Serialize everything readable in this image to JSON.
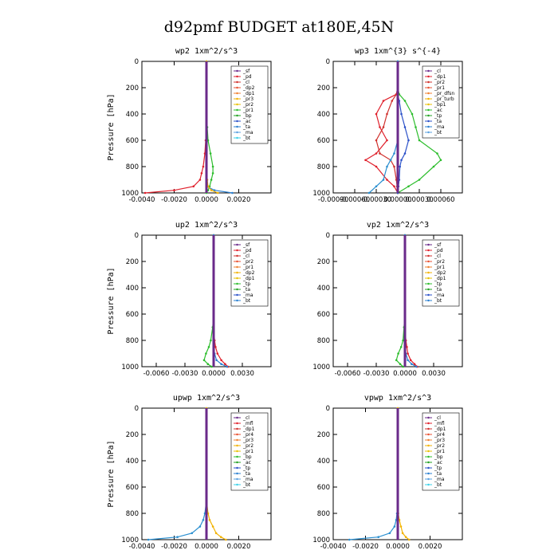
{
  "title": "d92pmf  BUDGET at180E,45N",
  "chart_data": [
    {
      "type": "line",
      "title": "wp2   1xm^2/s^3",
      "ylabel": "Pressure [hPa]",
      "xlim": [
        -0.004,
        0.004
      ],
      "ylim": [
        1000,
        0
      ],
      "xticks": [
        "-0.0040",
        "-0.0020",
        "0.0000",
        "0.0020"
      ],
      "xtick_values": [
        -0.004,
        -0.002,
        0.0,
        0.002
      ],
      "yticks": [
        "0",
        "200",
        "400",
        "600",
        "800",
        "1000"
      ],
      "ytick_values": [
        0,
        200,
        400,
        600,
        800,
        1000
      ],
      "legend": [
        "_sf",
        "_pd",
        "_cl",
        "_dp2",
        "_dp1",
        "_pr3",
        "_pr2",
        "_pr1",
        "_bp",
        "_ac",
        "_ta",
        "_ma",
        "_bt"
      ],
      "pressure": [
        0,
        100,
        200,
        300,
        400,
        500,
        600,
        700,
        800,
        850,
        900,
        950,
        980,
        1000
      ],
      "series": [
        {
          "name": "_pd",
          "color": "#e0202c",
          "values": [
            0,
            0,
            0,
            0,
            0,
            -1e-05,
            -5e-05,
            -0.0001,
            -0.0002,
            -0.0003,
            -0.0004,
            -0.0008,
            -0.002,
            -0.0038
          ]
        },
        {
          "name": "_bp",
          "color": "#2cbd2c",
          "values": [
            0,
            0,
            0,
            0,
            0,
            5e-05,
            0.0001,
            0.00025,
            0.0004,
            0.0004,
            0.0003,
            0.0002,
            0.0001,
            0
          ]
        },
        {
          "name": "_ta",
          "color": "#2a7fd0",
          "values": [
            0,
            0,
            0,
            0,
            0,
            0,
            0,
            0,
            0,
            0,
            0,
            0,
            0.0005,
            0.0016
          ]
        },
        {
          "name": "_pr1",
          "color": "#f2b200",
          "values": [
            0,
            0,
            0,
            0,
            0,
            0,
            0,
            0,
            0,
            0,
            5e-05,
            0.0001,
            0.0003,
            0.0007
          ]
        },
        {
          "name": "_bt",
          "color": "#6a2a8a",
          "values": [
            0,
            0,
            0,
            0,
            0,
            0,
            0,
            0,
            0,
            0,
            0,
            0,
            0,
            0
          ]
        }
      ]
    },
    {
      "type": "line",
      "title": "wp3   1xm^{3} s^{-4}",
      "ylabel": "",
      "xlim": [
        -0.0009,
        0.0009
      ],
      "ylim": [
        1000,
        0
      ],
      "xticks": [
        "-0.00090",
        "-0.00060",
        "-0.00030",
        "0.00000",
        "0.00030",
        "0.00060"
      ],
      "xtick_values": [
        -0.0009,
        -0.0006,
        -0.0003,
        0.0,
        0.0003,
        0.0006
      ],
      "yticks": [
        "0",
        "200",
        "400",
        "600",
        "800",
        "1000"
      ],
      "ytick_values": [
        0,
        200,
        400,
        600,
        800,
        1000
      ],
      "legend": [
        "_cl",
        "_dp1",
        "_pr2",
        "_pr1",
        "_pr_dfsn",
        "_pr_turb",
        "_bp1",
        "_ac",
        "_tp",
        "_ta",
        "_ma",
        "_bt"
      ],
      "pressure": [
        0,
        100,
        200,
        250,
        300,
        400,
        500,
        600,
        700,
        750,
        800,
        900,
        950,
        1000
      ],
      "series": [
        {
          "name": "_dp1",
          "color": "#e0202c",
          "values": [
            0,
            0,
            0,
            -2e-05,
            -0.0002,
            -0.0003,
            -0.00025,
            -0.00015,
            -0.0003,
            -0.00045,
            -0.0003,
            -0.00015,
            -5e-05,
            0
          ]
        },
        {
          "name": "_pr2",
          "color": "#d0302c",
          "values": [
            0,
            0,
            0,
            -2e-05,
            -8e-05,
            -0.00015,
            -0.0002,
            -0.0003,
            -0.00025,
            -0.0001,
            -5e-05,
            -2e-05,
            -1e-05,
            0
          ]
        },
        {
          "name": "_bp1",
          "color": "#2cbd2c",
          "values": [
            0,
            0,
            0,
            2e-05,
            0.0001,
            0.0002,
            0.00025,
            0.0003,
            0.00055,
            0.0006,
            0.0005,
            0.0003,
            0.00015,
            0
          ]
        },
        {
          "name": "_tp",
          "color": "#2a50c8",
          "values": [
            0,
            0,
            0,
            0,
            2e-05,
            5e-05,
            0.0001,
            0.00015,
            0.0001,
            5e-05,
            3e-05,
            2e-05,
            1e-05,
            0
          ]
        },
        {
          "name": "_ta",
          "color": "#2a8fd0",
          "values": [
            0,
            0,
            0,
            0,
            0,
            0,
            0,
            0,
            -5e-05,
            -0.0001,
            -0.00015,
            -0.0002,
            -0.0003,
            -0.0004
          ]
        },
        {
          "name": "_bt",
          "color": "#6a2a8a",
          "values": [
            0,
            0,
            0,
            0,
            0,
            0,
            0,
            0,
            0,
            0,
            0,
            0,
            0,
            0
          ]
        }
      ]
    },
    {
      "type": "line",
      "title": "up2   1xm^2/s^3",
      "ylabel": "Pressure [hPa]",
      "xlim": [
        -0.0075,
        0.006
      ],
      "ylim": [
        1000,
        0
      ],
      "xticks": [
        "-0.0060",
        "-0.0030",
        "0.0000",
        "0.0030"
      ],
      "xtick_values": [
        -0.006,
        -0.003,
        0.0,
        0.003
      ],
      "yticks": [
        "0",
        "200",
        "400",
        "600",
        "800",
        "1000"
      ],
      "ytick_values": [
        0,
        200,
        400,
        600,
        800,
        1000
      ],
      "legend": [
        "_sf",
        "_pd",
        "_cl",
        "_pr2",
        "_pr1",
        "_dp2",
        "_dp1",
        "_tp",
        "_ta",
        "_ma",
        "_bt"
      ],
      "pressure": [
        0,
        200,
        400,
        600,
        700,
        800,
        850,
        900,
        950,
        980,
        1000
      ],
      "series": [
        {
          "name": "_pd",
          "color": "#e0202c",
          "values": [
            0,
            0,
            0,
            0,
            0,
            0.0001,
            0.0002,
            0.0004,
            0.0008,
            0.0012,
            0.0015
          ]
        },
        {
          "name": "_dp1",
          "color": "#2cbd2c",
          "values": [
            0,
            0,
            0,
            0,
            -0.0001,
            -0.0003,
            -0.0005,
            -0.0008,
            -0.001,
            -0.0006,
            -0.0002
          ]
        },
        {
          "name": "_ta",
          "color": "#2a7fd0",
          "values": [
            0,
            0,
            0,
            0,
            0,
            0,
            0,
            0.0001,
            0.0003,
            0.0008,
            0.0014
          ]
        },
        {
          "name": "_bt",
          "color": "#6a2a8a",
          "values": [
            0,
            0,
            0,
            0,
            0,
            0,
            0,
            0,
            0,
            0,
            0
          ]
        }
      ]
    },
    {
      "type": "line",
      "title": "vp2   1xm^2/s^3",
      "ylabel": "",
      "xlim": [
        -0.0075,
        0.006
      ],
      "ylim": [
        1000,
        0
      ],
      "xticks": [
        "-0.0060",
        "-0.0030",
        "0.0000",
        "0.0030"
      ],
      "xtick_values": [
        -0.006,
        -0.003,
        0.0,
        0.003
      ],
      "yticks": [
        "0",
        "200",
        "400",
        "600",
        "800",
        "1000"
      ],
      "ytick_values": [
        0,
        200,
        400,
        600,
        800,
        1000
      ],
      "legend": [
        "_sf",
        "_pd",
        "_cl",
        "_pr2",
        "_pr1",
        "_dp2",
        "_dp1",
        "_tp",
        "_ta",
        "_ma",
        "_bt"
      ],
      "pressure": [
        0,
        200,
        400,
        600,
        700,
        800,
        850,
        900,
        950,
        980,
        1000
      ],
      "series": [
        {
          "name": "_pd",
          "color": "#e0202c",
          "values": [
            0,
            0,
            0,
            0,
            0,
            0.0001,
            0.0002,
            0.0003,
            0.0006,
            0.001,
            0.0013
          ]
        },
        {
          "name": "_dp1",
          "color": "#2cbd2c",
          "values": [
            0,
            0,
            0,
            0,
            -0.0001,
            -0.0002,
            -0.0004,
            -0.0007,
            -0.0009,
            -0.0005,
            -0.0002
          ]
        },
        {
          "name": "_ta",
          "color": "#2a7fd0",
          "values": [
            0,
            0,
            0,
            0,
            0,
            0,
            0,
            0.0001,
            0.0003,
            0.0007,
            0.0012
          ]
        },
        {
          "name": "_bt",
          "color": "#6a2a8a",
          "values": [
            0,
            0,
            0,
            0,
            0,
            0,
            0,
            0,
            0,
            0,
            0
          ]
        }
      ]
    },
    {
      "type": "line",
      "title": "upwp   1xm^2/s^3",
      "ylabel": "Pressure [hPa]",
      "xlim": [
        -0.004,
        0.004
      ],
      "ylim": [
        1000,
        0
      ],
      "xticks": [
        "-0.0040",
        "-0.0020",
        "0.0000",
        "0.0020"
      ],
      "xtick_values": [
        -0.004,
        -0.002,
        0.0,
        0.002
      ],
      "yticks": [
        "0",
        "200",
        "400",
        "600",
        "800",
        "1000"
      ],
      "ytick_values": [
        0,
        200,
        400,
        600,
        800,
        1000
      ],
      "legend": [
        "_cl",
        "_mfl",
        "_dp1",
        "_pr4",
        "_pr3",
        "_pr2",
        "_pr1",
        "_bp",
        "_ac",
        "_tp",
        "_ta",
        "_ma",
        "_bt"
      ],
      "pressure": [
        0,
        200,
        400,
        600,
        700,
        800,
        850,
        900,
        950,
        980,
        1000
      ],
      "series": [
        {
          "name": "_ta",
          "color": "#2a8fd0",
          "values": [
            0,
            0,
            0,
            0,
            0,
            -0.0001,
            -0.0002,
            -0.0004,
            -0.0009,
            -0.0018,
            -0.0036
          ]
        },
        {
          "name": "_pr1",
          "color": "#f2b200",
          "values": [
            0,
            0,
            0,
            0,
            0,
            0.0001,
            0.0002,
            0.0004,
            0.0006,
            0.0009,
            0.0012
          ]
        },
        {
          "name": "_bt",
          "color": "#6a2a8a",
          "values": [
            0,
            0,
            0,
            0,
            0,
            0,
            0,
            0,
            0,
            0,
            0
          ]
        }
      ]
    },
    {
      "type": "line",
      "title": "vpwp   1xm^2/s^3",
      "ylabel": "",
      "xlim": [
        -0.004,
        0.004
      ],
      "ylim": [
        1000,
        0
      ],
      "xticks": [
        "-0.0040",
        "-0.0020",
        "0.0000",
        "0.0020"
      ],
      "xtick_values": [
        -0.004,
        -0.002,
        0.0,
        0.002
      ],
      "yticks": [
        "0",
        "200",
        "400",
        "600",
        "800",
        "1000"
      ],
      "ytick_values": [
        0,
        200,
        400,
        600,
        800,
        1000
      ],
      "legend": [
        "_cl",
        "_mfl",
        "_dp1",
        "_pr4",
        "_pr3",
        "_pr2",
        "_pr1",
        "_bp",
        "_ac",
        "_tp",
        "_ta",
        "_ma",
        "_bt"
      ],
      "pressure": [
        0,
        200,
        400,
        600,
        700,
        800,
        850,
        900,
        950,
        980,
        1000
      ],
      "series": [
        {
          "name": "_ta",
          "color": "#2a8fd0",
          "values": [
            0,
            0,
            0,
            0,
            0,
            -5e-05,
            -0.0001,
            -0.0002,
            -0.0005,
            -0.0012,
            -0.003
          ]
        },
        {
          "name": "_pr1",
          "color": "#f2b200",
          "values": [
            0,
            0,
            0,
            0,
            0,
            3e-05,
            0.0001,
            0.0002,
            0.0003,
            0.0005,
            0.0007
          ]
        },
        {
          "name": "_bt",
          "color": "#6a2a8a",
          "values": [
            0,
            0,
            0,
            0,
            0,
            0,
            0,
            0,
            0,
            0,
            0
          ]
        }
      ]
    }
  ]
}
